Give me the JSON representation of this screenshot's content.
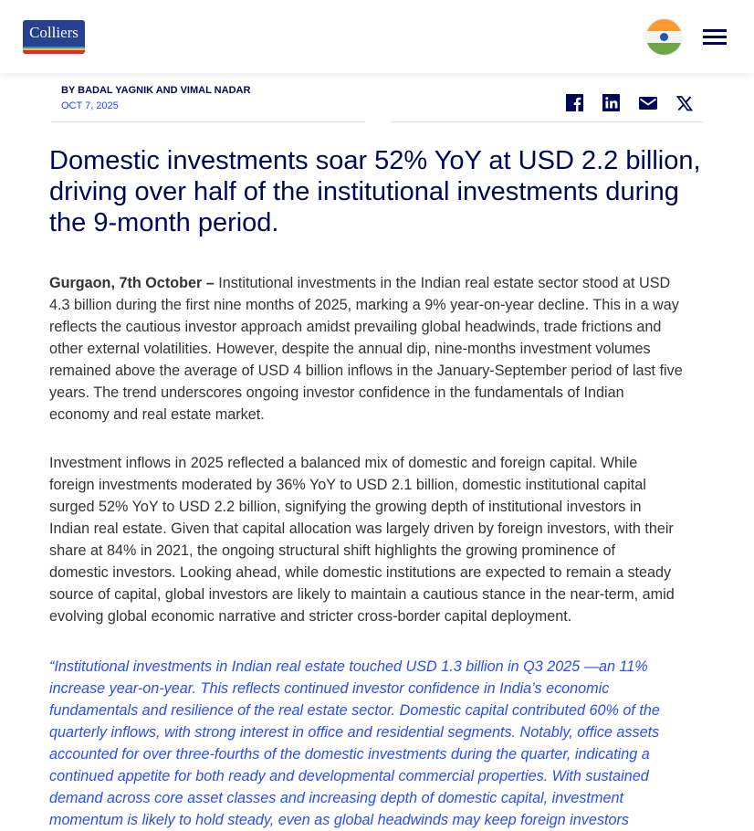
{
  "header": {
    "logo_text": "Colliers",
    "region_flag": "india-flag-icon",
    "menu_icon": "hamburger-menu-icon"
  },
  "article": {
    "byline": "BY BADAL YAGNIK AND VIMAL NADAR",
    "date": "OCT 7, 2025",
    "share_icons": [
      "facebook-icon",
      "linkedin-icon",
      "email-icon",
      "x-icon"
    ],
    "title_lines": [
      "Domestic investments soar 52% YoY at USD 2.2 billion,",
      "driving over half of the institutional investments during",
      "the 9-month period."
    ],
    "paragraph1": {
      "lead": "Gurgaon, 7th October –",
      "lines": [
        "Institutional investments in the Indian real estate sector stood at USD",
        "4.3 billion during the first nine months of 2025, marking a 9% year-on-year decline. This in a way",
        "reflects the cautious investor approach amidst prevailing global headwinds, trade frictions and",
        "other external volatilities. However, despite the annual dip, nine-months investment volumes",
        "remained above the average of USD 4 billion inflows in the January-September period of last five",
        "years.  The trend underscores ongoing investor confidence in the fundamentals of Indian",
        "economy and real estate market."
      ]
    },
    "paragraph2": {
      "lines": [
        "Investment inflows in 2025 reflected a balanced mix of domestic and foreign capital. While",
        "foreign investments moderated by 36% YoY to USD 2.1 billion, domestic institutional capital",
        "surged 52% YoY to USD 2.2 billion, signifying the growing depth of institutional investors in",
        "Indian real estate. Given that capital allocation was largely driven by foreign investors, with their",
        "share at 84% in 2021, the ongoing structural shift highlights the growing prominence of",
        "domestic investors. Looking ahead, while domestic institutions are expected to remain a steady",
        "source of capital, global investors are likely to maintain a cautious stance in the near-term, amid",
        "evolving global economic narrative and stricter cross-border capital deployment."
      ]
    },
    "quote": {
      "lines": [
        "“Institutional investments in Indian real estate touched USD 1.3 billion in Q3 2025 —an 11%",
        "increase year-on-year. This reflects continued investor confidence in India’s economic",
        "fundamentals and resilience of the real estate sector. Domestic capital contributed 60% of the",
        "quarterly inflows, with strong interest in office and residential segments. Notably, office assets",
        "accounted for over three-fourths of the domestic investments during the quarter, indicating a",
        "continued appetite for both ready and developmental commercial properties. With sustained",
        "demand across core asset classes and increasing depth of domestic capital, investment",
        "momentum is likely to hold steady, even as global headwinds may keep foreign investors"
      ]
    }
  },
  "colors": {
    "navy": "#000759",
    "link_blue": "#1d4bf0",
    "quote_blue": "#2a4cf2",
    "body_text": "#333333"
  }
}
